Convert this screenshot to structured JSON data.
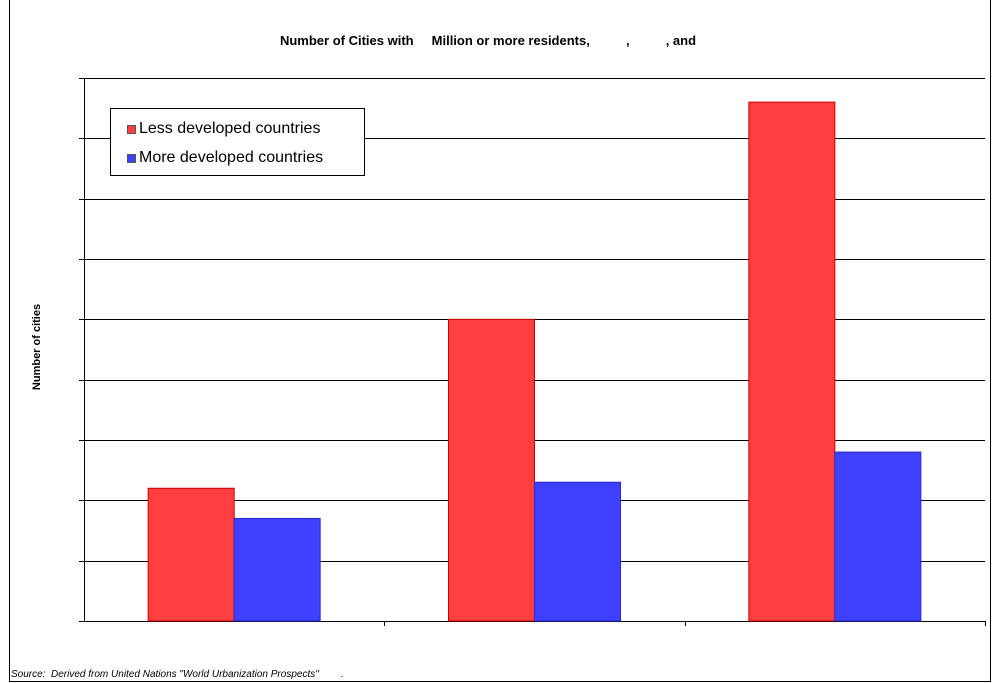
{
  "chart_data": {
    "type": "bar",
    "title": "Number of Cities with     Million or more residents,          ,          , and",
    "xlabel": "",
    "ylabel": "Number of cities",
    "categories": [
      "",
      "",
      ""
    ],
    "series": [
      {
        "name": "Less developed countries",
        "color": "#ff3f3f",
        "values": [
          2.2,
          5.0,
          8.6
        ]
      },
      {
        "name": "More developed countries",
        "color": "#3f3fff",
        "values": [
          1.7,
          2.3,
          2.8
        ]
      }
    ],
    "ylim": [
      0,
      9
    ],
    "ytick_count": 9,
    "grid": true,
    "legend_position": "top-left",
    "source": "Source:  Derived from United Nations \"World Urbanization Prospects\"        ."
  }
}
